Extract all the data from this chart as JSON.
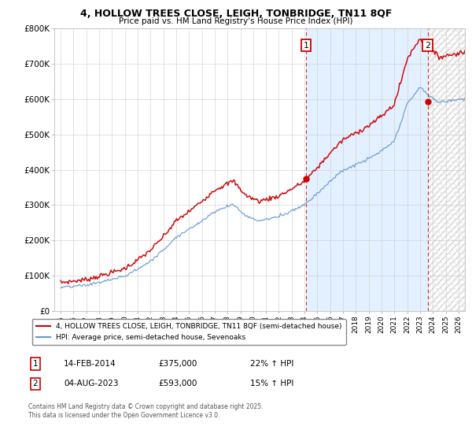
{
  "title": "4, HOLLOW TREES CLOSE, LEIGH, TONBRIDGE, TN11 8QF",
  "subtitle": "Price paid vs. HM Land Registry's House Price Index (HPI)",
  "legend_line1": "4, HOLLOW TREES CLOSE, LEIGH, TONBRIDGE, TN11 8QF (semi-detached house)",
  "legend_line2": "HPI: Average price, semi-detached house, Sevenoaks",
  "annotation1_label": "1",
  "annotation1_date": "14-FEB-2014",
  "annotation1_price": "£375,000",
  "annotation1_hpi": "22% ↑ HPI",
  "annotation2_label": "2",
  "annotation2_date": "04-AUG-2023",
  "annotation2_price": "£593,000",
  "annotation2_hpi": "15% ↑ HPI",
  "footer": "Contains HM Land Registry data © Crown copyright and database right 2025.\nThis data is licensed under the Open Government Licence v3.0.",
  "red_color": "#cc0000",
  "blue_color": "#6699cc",
  "shade_color": "#ddeeff",
  "sale1_x": 2014.12,
  "sale1_y": 375000,
  "sale2_x": 2023.59,
  "sale2_y": 593000,
  "ylim_min": 0,
  "ylim_max": 800000,
  "xlim_min": 1994.5,
  "xlim_max": 2026.5,
  "yticks": [
    0,
    100000,
    200000,
    300000,
    400000,
    500000,
    600000,
    700000,
    800000
  ],
  "ylabels": [
    "£0",
    "£100K",
    "£200K",
    "£300K",
    "£400K",
    "£500K",
    "£600K",
    "£700K",
    "£800K"
  ]
}
